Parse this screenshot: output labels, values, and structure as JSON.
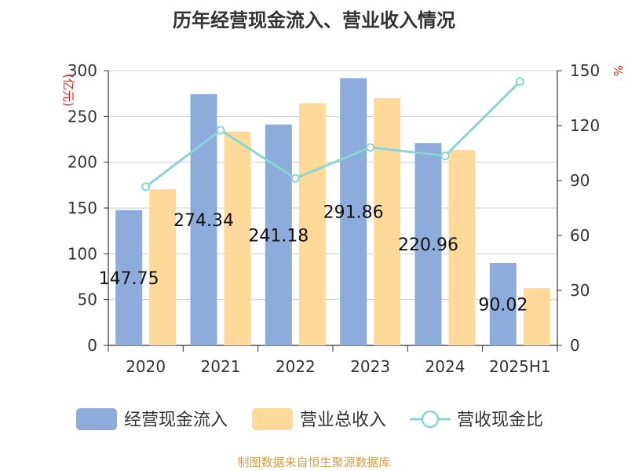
{
  "title": "历年经营现金流入、营业收入情况",
  "source_note": "制图数据来自恒生聚源数据库",
  "colors": {
    "cash_inflow": "#8eacdb",
    "revenue": "#fed99a",
    "ratio": "#89d4d6",
    "grid": "#cccccc",
    "axis": "#333333",
    "unit": "#e02020"
  },
  "chart_data": {
    "type": "bar",
    "categories": [
      "2020",
      "2021",
      "2022",
      "2023",
      "2024",
      "2025H1"
    ],
    "y_left": {
      "unit": "(亿元)",
      "ylim": [
        0,
        300
      ],
      "ticks": [
        "0",
        "50",
        "100",
        "150",
        "200",
        "250",
        "300"
      ]
    },
    "y_right": {
      "unit": "%",
      "ylim": [
        0,
        150
      ],
      "ticks": [
        "0",
        "30",
        "60",
        "90",
        "120",
        "150"
      ]
    },
    "series": [
      {
        "name": "经营现金流入",
        "type": "bar",
        "axis": "left",
        "values": [
          147.75,
          274.34,
          241.18,
          291.86,
          220.96,
          90.02
        ],
        "labels": [
          "147.75",
          "274.34",
          "241.18",
          "291.86",
          "220.96",
          "90.02"
        ]
      },
      {
        "name": "营业总收入",
        "type": "bar",
        "axis": "left",
        "values": [
          170.5,
          233.5,
          264.5,
          270.0,
          213.5,
          62.5
        ]
      },
      {
        "name": "营收现金比",
        "type": "line",
        "axis": "right",
        "values": [
          86.6,
          117.5,
          91.2,
          108.1,
          103.5,
          144.0
        ]
      }
    ],
    "grid": true,
    "legend": "bottom"
  }
}
